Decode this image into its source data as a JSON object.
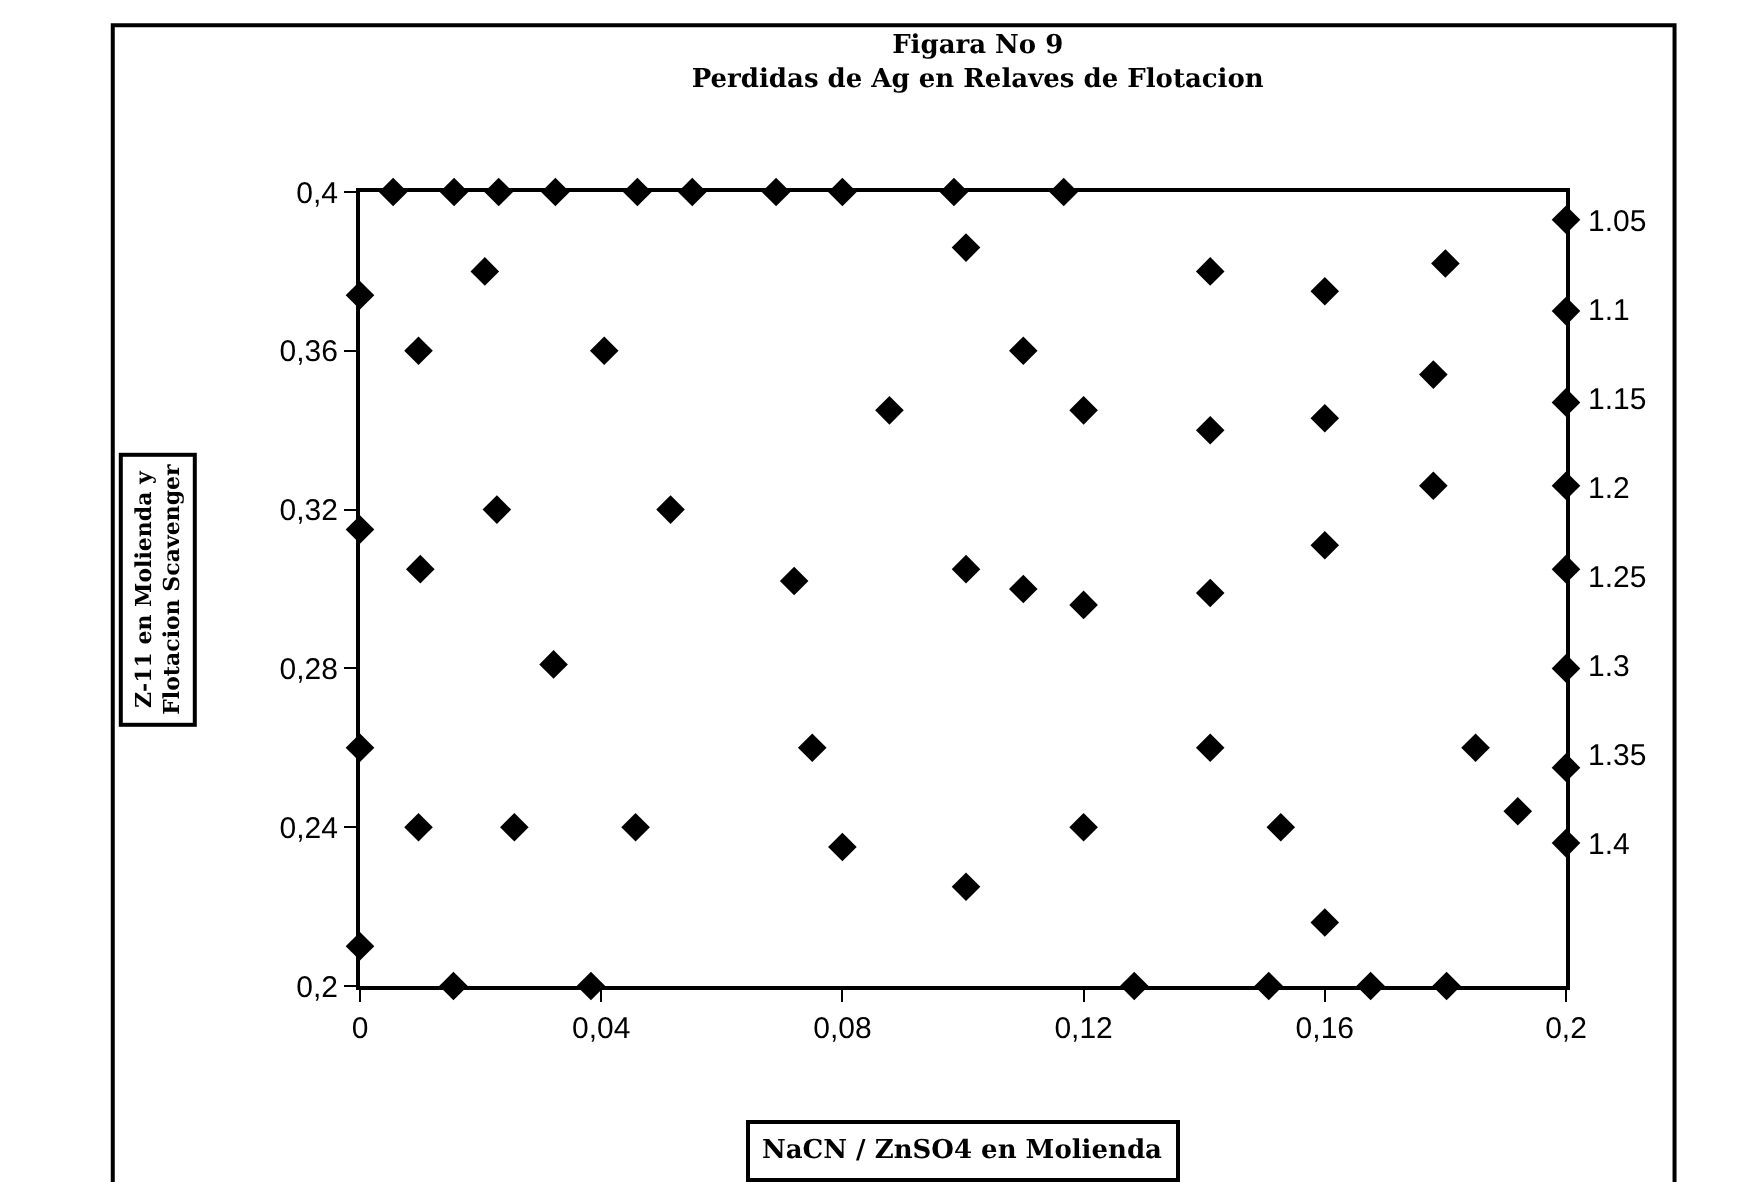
{
  "chart_data": {
    "type": "scatter",
    "title": "Figara No 9",
    "subtitle": "Perdidas de Ag en Relaves de Flotacion",
    "xlabel": "NaCN / ZnSO4 en Molienda",
    "ylabel": "Z-11 en Molienda y\nFlotacion Scavenger",
    "x": [
      0.0055,
      0.0156,
      0.023,
      0.0324,
      0.046,
      0.0551,
      0.069,
      0.08,
      0.0985,
      0.1167,
      0.0155,
      0.0383,
      0.1284,
      0.1507,
      0.1676,
      0.1802,
      0,
      0,
      0,
      0,
      0.2,
      0.2,
      0.2,
      0.2,
      0.2,
      0.2,
      0.2,
      0.2,
      0.0207,
      0.0097,
      0.0405,
      0.0878,
      0.0227,
      0.0515,
      0.01,
      0.072,
      0.0321,
      0.075,
      0.0097,
      0.0256,
      0.0457,
      0.08,
      0.1005,
      0.1005,
      0.1005,
      0.11,
      0.12,
      0.11,
      0.12,
      0.12,
      0.141,
      0.141,
      0.141,
      0.141,
      0.16,
      0.16,
      0.16,
      0.16,
      0.1527,
      0.18,
      0.178,
      0.178,
      0.185,
      0.192
    ],
    "series": [
      {
        "color": "#000000",
        "values": [
          0.4,
          0.4,
          0.4,
          0.4,
          0.4,
          0.4,
          0.4,
          0.4,
          0.4,
          0.4,
          0.2,
          0.2,
          0.2,
          0.2,
          0.2,
          0.2,
          0.374,
          0.315,
          0.26,
          0.21,
          0.393,
          0.37,
          0.347,
          0.326,
          0.305,
          0.28,
          0.255,
          0.236,
          0.38,
          0.36,
          0.36,
          0.345,
          0.32,
          0.32,
          0.305,
          0.302,
          0.281,
          0.26,
          0.24,
          0.24,
          0.24,
          0.235,
          0.386,
          0.305,
          0.225,
          0.36,
          0.345,
          0.3,
          0.296,
          0.24,
          0.38,
          0.34,
          0.299,
          0.26,
          0.375,
          0.343,
          0.311,
          0.216,
          0.24,
          0.382,
          0.354,
          0.326,
          0.26,
          0.244
        ]
      }
    ],
    "marker": "diamond",
    "xlim": [
      0,
      0.2
    ],
    "xticks": [
      {
        "value": 0,
        "label": "0"
      },
      {
        "value": 0.04,
        "label": "0,04"
      },
      {
        "value": 0.08,
        "label": "0,08"
      },
      {
        "value": 0.12,
        "label": "0,12"
      },
      {
        "value": 0.16,
        "label": "0,16"
      },
      {
        "value": 0.2,
        "label": "0,2"
      }
    ],
    "ylim": [
      0.2,
      0.4
    ],
    "yticks": [
      {
        "value": 0.2,
        "label": "0,2"
      },
      {
        "value": 0.24,
        "label": "0,24"
      },
      {
        "value": 0.28,
        "label": "0,28"
      },
      {
        "value": 0.32,
        "label": "0,32"
      },
      {
        "value": 0.36,
        "label": "0,36"
      },
      {
        "value": 0.4,
        "label": "0,4"
      }
    ],
    "y2lim": [
      1.48,
      1.034
    ],
    "y2ticks": [
      1.05,
      1.1,
      1.15,
      1.2,
      1.25,
      1.3,
      1.35,
      1.4
    ],
    "grid": false
  }
}
